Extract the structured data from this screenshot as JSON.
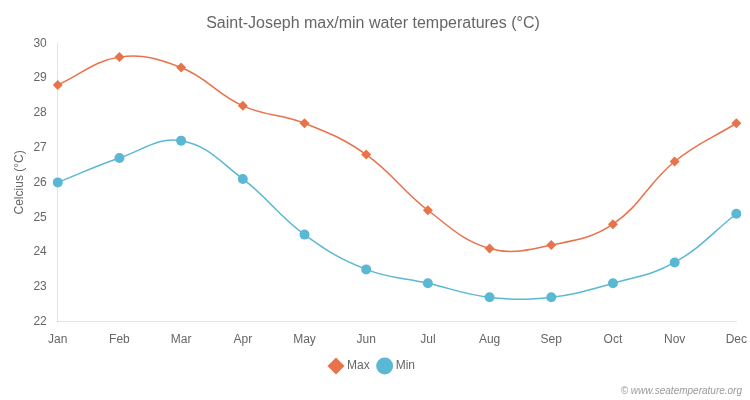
{
  "chart_data": {
    "type": "line",
    "title": "Saint-Joseph max/min water temperatures (°C)",
    "ylabel": "Celcius (°C)",
    "categories": [
      "Jan",
      "Feb",
      "Mar",
      "Apr",
      "May",
      "Jun",
      "Jul",
      "Aug",
      "Sep",
      "Oct",
      "Nov",
      "Dec"
    ],
    "series": [
      {
        "name": "Max",
        "color": "#e8724a",
        "marker": "diamond",
        "line_style": "solid",
        "values": [
          28.8,
          29.6,
          29.3,
          28.2,
          27.7,
          26.8,
          25.2,
          24.1,
          24.2,
          24.8,
          26.6,
          27.7
        ]
      },
      {
        "name": "Min",
        "color": "#5bb8d4",
        "marker": "circle",
        "line_style": "solid",
        "values": [
          26.0,
          26.7,
          27.2,
          26.1,
          24.5,
          23.5,
          23.1,
          22.7,
          22.7,
          23.1,
          23.7,
          25.1
        ]
      }
    ],
    "ylim": [
      22,
      30
    ],
    "yticks": [
      22,
      23,
      24,
      25,
      26,
      27,
      28,
      29,
      30
    ],
    "grid": false,
    "legend": "bottom",
    "annotations": [
      "© www.seatemperature.org"
    ]
  }
}
